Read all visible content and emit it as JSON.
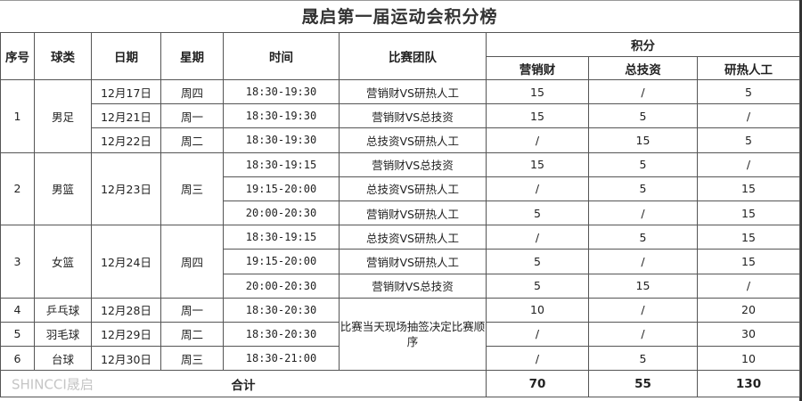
{
  "title": "晟启第一届运动会积分榜",
  "headers": {
    "seq": "序号",
    "sport": "球类",
    "date": "日期",
    "weekday": "星期",
    "time": "时间",
    "match": "比赛团队",
    "points": "积分",
    "teams": [
      "营销财",
      "总技资",
      "研热人工"
    ]
  },
  "rows": [
    {
      "seq": "1",
      "sport": "男足",
      "date": "12月17日",
      "weekday": "周四",
      "time": "18:30-19:30",
      "match": "营销财VS研热人工",
      "scores": [
        "15",
        "/",
        "5"
      ]
    },
    {
      "seq": "1",
      "sport": "男足",
      "date": "12月21日",
      "weekday": "周一",
      "time": "18:30-19:30",
      "match": "营销财VS总技资",
      "scores": [
        "15",
        "5",
        "/"
      ]
    },
    {
      "seq": "1",
      "sport": "男足",
      "date": "12月22日",
      "weekday": "周二",
      "time": "18:30-19:30",
      "match": "总技资VS研热人工",
      "scores": [
        "/",
        "15",
        "5"
      ]
    },
    {
      "seq": "2",
      "sport": "男篮",
      "date": "12月23日",
      "weekday": "周三",
      "time": "18:30-19:15",
      "match": "营销财VS总技资",
      "scores": [
        "15",
        "5",
        "/"
      ]
    },
    {
      "seq": "2",
      "sport": "男篮",
      "date": "12月23日",
      "weekday": "周三",
      "time": "19:15-20:00",
      "match": "总技资VS研热人工",
      "scores": [
        "/",
        "5",
        "15"
      ]
    },
    {
      "seq": "2",
      "sport": "男篮",
      "date": "12月23日",
      "weekday": "周三",
      "time": "20:00-20:30",
      "match": "营销财VS研热人工",
      "scores": [
        "5",
        "/",
        "15"
      ]
    },
    {
      "seq": "3",
      "sport": "女篮",
      "date": "12月24日",
      "weekday": "周四",
      "time": "18:30-19:15",
      "match": "总技资VS研热人工",
      "scores": [
        "/",
        "5",
        "15"
      ]
    },
    {
      "seq": "3",
      "sport": "女篮",
      "date": "12月24日",
      "weekday": "周四",
      "time": "19:15-20:00",
      "match": "营销财VS研热人工",
      "scores": [
        "5",
        "/",
        "15"
      ]
    },
    {
      "seq": "3",
      "sport": "女篮",
      "date": "12月24日",
      "weekday": "周四",
      "time": "20:00-20:30",
      "match": "营销财VS总技资",
      "scores": [
        "5",
        "15",
        "/"
      ]
    },
    {
      "seq": "4",
      "sport": "乒乓球",
      "date": "12月28日",
      "weekday": "周一",
      "time": "18:30-20:30",
      "match": "比赛当天现场抽签决定比赛顺序",
      "scores": [
        "10",
        "/",
        "20"
      ]
    },
    {
      "seq": "5",
      "sport": "羽毛球",
      "date": "12月29日",
      "weekday": "周二",
      "time": "18:30-20:30",
      "match": "比赛当天现场抽签决定比赛顺序",
      "scores": [
        "/",
        "/",
        "30"
      ]
    },
    {
      "seq": "6",
      "sport": "台球",
      "date": "12月30日",
      "weekday": "周三",
      "time": "18:30-21:00",
      "match": "比赛当天现场抽签决定比赛顺序",
      "scores": [
        "/",
        "5",
        "10"
      ]
    }
  ],
  "total": {
    "label": "合计",
    "values": [
      "70",
      "55",
      "130"
    ]
  },
  "watermark": "SHINCCI晟启"
}
